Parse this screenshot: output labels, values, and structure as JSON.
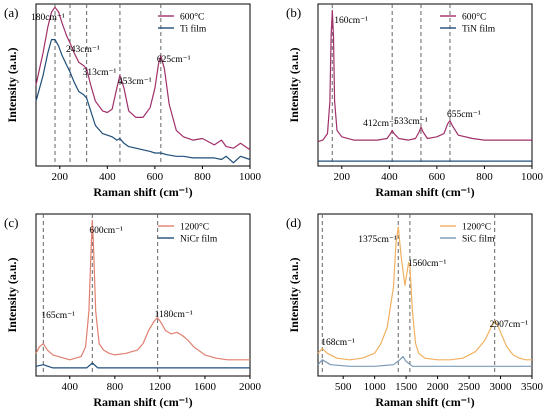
{
  "chart_data": [
    {
      "panel_label": "(a)",
      "type": "line",
      "xlabel": "Raman shift (cm⁻¹)",
      "ylabel": "Intensity (a.u.)",
      "xlim": [
        100,
        1000
      ],
      "ylim": [
        0,
        1
      ],
      "xticks": [
        "200",
        "400",
        "600",
        "800",
        "1000"
      ],
      "xtick_values": [
        200,
        400,
        600,
        800,
        1000
      ],
      "legend_position": "top-right",
      "peaks": [
        {
          "x": 180,
          "label": "180cm⁻¹"
        },
        {
          "x": 243,
          "label": "243cm⁻¹"
        },
        {
          "x": 313,
          "label": "313cm⁻¹"
        },
        {
          "x": 453,
          "label": "453cm⁻¹"
        },
        {
          "x": 625,
          "label": "625cm⁻¹"
        }
      ],
      "series": [
        {
          "name": "600°C",
          "color": "#a0306a",
          "x": [
            100,
            130,
            150,
            165,
            180,
            195,
            210,
            230,
            243,
            260,
            280,
            300,
            313,
            330,
            350,
            380,
            400,
            420,
            440,
            453,
            470,
            490,
            520,
            550,
            580,
            600,
            615,
            625,
            640,
            660,
            690,
            720,
            760,
            800,
            850,
            880,
            900,
            930,
            960,
            1000
          ],
          "y": [
            0.5,
            0.7,
            0.86,
            0.95,
            0.98,
            0.95,
            0.88,
            0.8,
            0.76,
            0.7,
            0.64,
            0.62,
            0.6,
            0.5,
            0.4,
            0.34,
            0.33,
            0.35,
            0.48,
            0.56,
            0.48,
            0.34,
            0.3,
            0.3,
            0.36,
            0.48,
            0.63,
            0.68,
            0.6,
            0.38,
            0.22,
            0.18,
            0.16,
            0.17,
            0.13,
            0.16,
            0.12,
            0.11,
            0.14,
            0.1
          ]
        },
        {
          "name": "Ti film",
          "color": "#1f4e7a",
          "x": [
            100,
            130,
            150,
            165,
            180,
            195,
            210,
            230,
            243,
            260,
            280,
            300,
            313,
            330,
            350,
            380,
            400,
            420,
            440,
            453,
            470,
            490,
            520,
            550,
            580,
            600,
            625,
            650,
            690,
            720,
            760,
            800,
            850,
            880,
            900,
            930,
            960,
            1000
          ],
          "y": [
            0.4,
            0.56,
            0.7,
            0.78,
            0.78,
            0.74,
            0.68,
            0.62,
            0.58,
            0.52,
            0.46,
            0.44,
            0.42,
            0.34,
            0.25,
            0.2,
            0.19,
            0.18,
            0.16,
            0.17,
            0.14,
            0.12,
            0.11,
            0.1,
            0.09,
            0.08,
            0.08,
            0.07,
            0.06,
            0.06,
            0.05,
            0.05,
            0.05,
            0.04,
            0.06,
            0.02,
            0.06,
            0.04
          ]
        }
      ]
    },
    {
      "panel_label": "(b)",
      "type": "line",
      "xlabel": "Raman shift (cm⁻¹)",
      "ylabel": "Intensity (a.u.)",
      "xlim": [
        100,
        1000
      ],
      "ylim": [
        0,
        1
      ],
      "xticks": [
        "200",
        "400",
        "600",
        "800",
        "1000"
      ],
      "xtick_values": [
        200,
        400,
        600,
        800,
        1000
      ],
      "legend_position": "top-right",
      "peaks": [
        {
          "x": 160,
          "label": "160cm⁻¹"
        },
        {
          "x": 412,
          "label": "412cm⁻¹"
        },
        {
          "x": 533,
          "label": "533cm⁻¹"
        },
        {
          "x": 655,
          "label": "655cm⁻¹"
        }
      ],
      "series": [
        {
          "name": "600°C",
          "color": "#a0306a",
          "x": [
            100,
            120,
            140,
            150,
            155,
            160,
            165,
            170,
            180,
            200,
            250,
            300,
            350,
            390,
            405,
            412,
            420,
            440,
            480,
            510,
            525,
            533,
            542,
            560,
            600,
            630,
            645,
            655,
            665,
            690,
            750,
            800,
            900,
            1000
          ],
          "y": [
            0.15,
            0.16,
            0.2,
            0.4,
            0.8,
            0.96,
            0.8,
            0.4,
            0.22,
            0.18,
            0.16,
            0.16,
            0.16,
            0.17,
            0.2,
            0.22,
            0.2,
            0.17,
            0.16,
            0.17,
            0.21,
            0.24,
            0.21,
            0.17,
            0.18,
            0.2,
            0.26,
            0.28,
            0.25,
            0.19,
            0.17,
            0.16,
            0.16,
            0.16
          ]
        },
        {
          "name": "TiN film",
          "color": "#1f4e7a",
          "x": [
            100,
            200,
            400,
            600,
            800,
            1000
          ],
          "y": [
            0.03,
            0.03,
            0.03,
            0.03,
            0.03,
            0.03
          ]
        }
      ]
    },
    {
      "panel_label": "(c)",
      "type": "line",
      "xlabel": "Raman shift (cm⁻¹)",
      "ylabel": "Intensity (a.u.)",
      "xlim": [
        100,
        2000
      ],
      "ylim": [
        0,
        1
      ],
      "xticks": [
        "400",
        "800",
        "1200",
        "1600",
        "2000"
      ],
      "xtick_values": [
        400,
        800,
        1200,
        1600,
        2000
      ],
      "legend_position": "top-right",
      "peaks": [
        {
          "x": 165,
          "label": "165cm⁻¹"
        },
        {
          "x": 600,
          "label": "600cm⁻¹"
        },
        {
          "x": 1180,
          "label": "1180cm⁻¹"
        }
      ],
      "series": [
        {
          "name": "1200°C",
          "color": "#e08070",
          "x": [
            100,
            130,
            165,
            200,
            250,
            300,
            350,
            400,
            450,
            500,
            540,
            570,
            590,
            600,
            610,
            630,
            660,
            700,
            750,
            800,
            900,
            1000,
            1050,
            1100,
            1150,
            1180,
            1210,
            1250,
            1300,
            1350,
            1400,
            1450,
            1500,
            1600,
            1700,
            1800,
            1900,
            2000
          ],
          "y": [
            0.14,
            0.18,
            0.2,
            0.16,
            0.13,
            0.12,
            0.11,
            0.1,
            0.11,
            0.12,
            0.18,
            0.4,
            0.8,
            0.96,
            0.82,
            0.4,
            0.2,
            0.16,
            0.14,
            0.13,
            0.14,
            0.16,
            0.2,
            0.28,
            0.34,
            0.36,
            0.33,
            0.28,
            0.26,
            0.27,
            0.25,
            0.22,
            0.18,
            0.13,
            0.11,
            0.1,
            0.1,
            0.1
          ]
        },
        {
          "name": "NiCr film",
          "color": "#1f4e7a",
          "x": [
            100,
            165,
            250,
            400,
            550,
            600,
            650,
            800,
            1000,
            1200,
            1400,
            1600,
            1800,
            2000
          ],
          "y": [
            0.06,
            0.07,
            0.05,
            0.05,
            0.05,
            0.08,
            0.05,
            0.05,
            0.05,
            0.05,
            0.05,
            0.05,
            0.05,
            0.05
          ]
        }
      ]
    },
    {
      "panel_label": "(d)",
      "type": "line",
      "xlabel": "Raman shift (cm⁻¹)",
      "ylabel": "Intensity (a.u.)",
      "xlim": [
        100,
        3500
      ],
      "ylim": [
        0,
        1
      ],
      "xticks": [
        "500",
        "1000",
        "1500",
        "2000",
        "2500",
        "3000",
        "3500"
      ],
      "xtick_values": [
        500,
        1000,
        1500,
        2000,
        2500,
        3000,
        3500
      ],
      "legend_position": "top-right",
      "peaks": [
        {
          "x": 168,
          "label": "168cm⁻¹"
        },
        {
          "x": 1375,
          "label": "1375cm⁻¹"
        },
        {
          "x": 1560,
          "label": "1560cm⁻¹"
        },
        {
          "x": 2907,
          "label": "2907cm⁻¹"
        }
      ],
      "series": [
        {
          "name": "1200°C",
          "color": "#f0b060",
          "x": [
            100,
            168,
            250,
            400,
            600,
            800,
            1000,
            1100,
            1200,
            1300,
            1340,
            1375,
            1420,
            1480,
            1540,
            1560,
            1600,
            1650,
            1700,
            1800,
            2000,
            2200,
            2400,
            2600,
            2750,
            2850,
            2907,
            2950,
            3000,
            3100,
            3200,
            3300,
            3400,
            3500
          ],
          "y": [
            0.14,
            0.17,
            0.14,
            0.11,
            0.1,
            0.11,
            0.14,
            0.2,
            0.3,
            0.55,
            0.82,
            0.92,
            0.74,
            0.56,
            0.7,
            0.68,
            0.4,
            0.2,
            0.14,
            0.11,
            0.1,
            0.1,
            0.11,
            0.15,
            0.22,
            0.3,
            0.34,
            0.32,
            0.27,
            0.18,
            0.13,
            0.11,
            0.1,
            0.1
          ]
        },
        {
          "name": "SiC film",
          "color": "#7a9ab8",
          "x": [
            100,
            168,
            300,
            600,
            1000,
            1300,
            1400,
            1450,
            1500,
            1600,
            2000,
            2500,
            3000,
            3500
          ],
          "y": [
            0.07,
            0.1,
            0.07,
            0.06,
            0.06,
            0.07,
            0.1,
            0.12,
            0.09,
            0.06,
            0.06,
            0.06,
            0.06,
            0.06
          ]
        }
      ]
    }
  ]
}
